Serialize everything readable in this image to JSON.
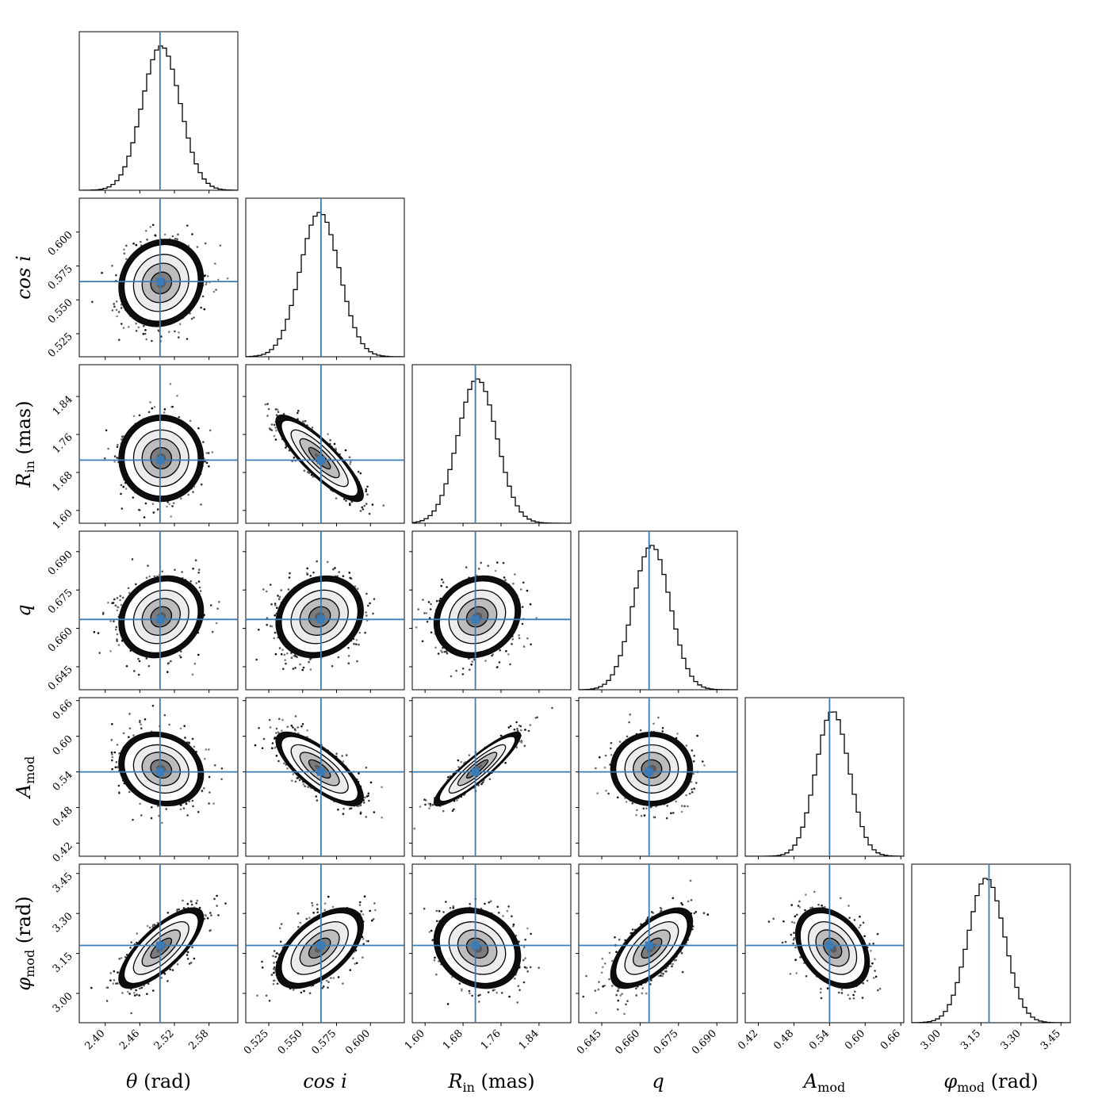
{
  "chart_data": {
    "type": "corner",
    "truth_color": "#3b7bb6",
    "parameters": [
      {
        "name": "theta",
        "label": "θ (rad)",
        "label_symbol": "θ",
        "label_text": "(rad)",
        "range": [
          2.355,
          2.63
        ],
        "ticks": [
          "2.40",
          "2.46",
          "2.52",
          "2.58"
        ],
        "tick_values": [
          2.4,
          2.46,
          2.52,
          2.58
        ],
        "truth": 2.495,
        "mean": 2.497,
        "sigma": 0.033
      },
      {
        "name": "cosi",
        "label": "cos i",
        "label_symbol": "cos",
        "label_text": "i",
        "range": [
          0.508,
          0.625
        ],
        "ticks": [
          "0.525",
          "0.550",
          "0.575",
          "0.600"
        ],
        "tick_values": [
          0.525,
          0.55,
          0.575,
          0.6
        ],
        "truth": 0.5635,
        "mean": 0.5625,
        "sigma": 0.0145
      },
      {
        "name": "rin",
        "label": "R_in (mas)",
        "label_symbol": "R",
        "label_sub": "in",
        "label_text": "(mas)",
        "range": [
          1.573,
          1.907
        ],
        "ticks": [
          "1.60",
          "1.68",
          "1.76",
          "1.84"
        ],
        "tick_values": [
          1.6,
          1.68,
          1.76,
          1.84
        ],
        "truth": 1.706,
        "mean": 1.71,
        "sigma": 0.041
      },
      {
        "name": "q",
        "label": "q",
        "label_symbol": "q",
        "range": [
          0.636,
          0.698
        ],
        "ticks": [
          "0.645",
          "0.660",
          "0.675",
          "0.690"
        ],
        "tick_values": [
          0.645,
          0.66,
          0.675,
          0.69
        ],
        "truth": 0.6635,
        "mean": 0.6645,
        "sigma": 0.0072
      },
      {
        "name": "amod",
        "label": "A_mod",
        "label_symbol": "A",
        "label_sub": "mod",
        "range": [
          0.398,
          0.665
        ],
        "ticks": [
          "0.42",
          "0.48",
          "0.54",
          "0.60",
          "0.66"
        ],
        "tick_values": [
          0.42,
          0.48,
          0.54,
          0.6,
          0.66
        ],
        "truth": 0.54,
        "mean": 0.545,
        "sigma": 0.028
      },
      {
        "name": "phimod",
        "label": "φ_mod (rad)",
        "label_symbol": "φ",
        "label_sub": "mod",
        "label_text": "(rad)",
        "range": [
          2.89,
          3.485
        ],
        "ticks": [
          "3.00",
          "3.15",
          "3.30",
          "3.45"
        ],
        "tick_values": [
          3.0,
          3.15,
          3.3,
          3.45
        ],
        "truth": 3.18,
        "mean": 3.17,
        "sigma": 0.068
      }
    ],
    "correlations": [
      [
        1,
        0.1,
        0.0,
        0.15,
        -0.15,
        0.75
      ],
      [
        0.1,
        1,
        -0.85,
        0.15,
        -0.75,
        0.55
      ],
      [
        0.0,
        -0.85,
        1,
        0.15,
        0.9,
        -0.2
      ],
      [
        0.15,
        0.15,
        0.15,
        1,
        0.0,
        0.65
      ],
      [
        -0.15,
        -0.75,
        0.9,
        0.0,
        1,
        -0.35
      ],
      [
        0.75,
        0.55,
        -0.2,
        0.65,
        -0.35,
        1
      ]
    ],
    "grid": false,
    "legend": "none"
  }
}
